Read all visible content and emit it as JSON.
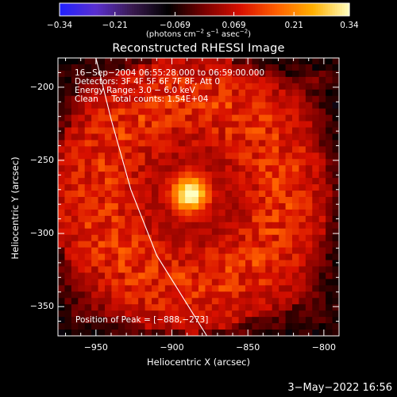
{
  "chart_data": {
    "type": "heatmap",
    "title": "Reconstructed RHESSI Image",
    "xlabel": "Heliocentric X (arcsec)",
    "ylabel": "Heliocentric Y (arcsec)",
    "xlim": [
      -975,
      -790
    ],
    "ylim": [
      -370,
      -180
    ],
    "x_ticks": [
      -950,
      -900,
      -850,
      -800
    ],
    "x_tick_labels": [
      "−950",
      "−900",
      "−850",
      "−800"
    ],
    "y_ticks": [
      -200,
      -250,
      -300,
      -350
    ],
    "y_tick_labels": [
      "−200",
      "−250",
      "−300",
      "−350"
    ],
    "peak": {
      "x": -888,
      "y": -273,
      "value": 0.34
    },
    "limb": [
      [
        -950,
        -180
      ],
      [
        -940,
        -222
      ],
      [
        -927,
        -270
      ],
      [
        -910,
        -315
      ],
      [
        -892,
        -345
      ],
      [
        -877,
        -370
      ]
    ],
    "colorbar": {
      "min": -0.34,
      "max": 0.34,
      "ticks": [
        -0.34,
        -0.21,
        -0.069,
        0.069,
        0.21,
        0.34
      ],
      "tick_labels": [
        "−0.34",
        "−0.21",
        "−0.069",
        "0.069",
        "0.21",
        "0.34"
      ],
      "colormap": [
        "#2020ff",
        "#5a30d0",
        "#3a1a50",
        "#000000",
        "#7a0000",
        "#d81000",
        "#ff6000",
        "#ffb000",
        "#ffffc0"
      ]
    },
    "grid": false,
    "legend": "none"
  },
  "colorbar_unit": {
    "text": "(photons cm",
    "exp1": "−2",
    "mid": " s",
    "exp2": "−1",
    "tail": " asec",
    "exp3": "−2",
    "close": ")"
  },
  "info": {
    "line1": "16−Sep−2004 06:55:28.000 to 06:59:00.000",
    "line2": "Detectors: 3F 4F 5F 6F 7F 8F, Att 0",
    "line3": "Energy Range: 3.0 − 6.0 keV",
    "line4": "Clean     Total counts: 1.54E+04"
  },
  "peak_label": "Position of Peak = [−888,−273]",
  "timestamp": "3−May−2022 16:56"
}
